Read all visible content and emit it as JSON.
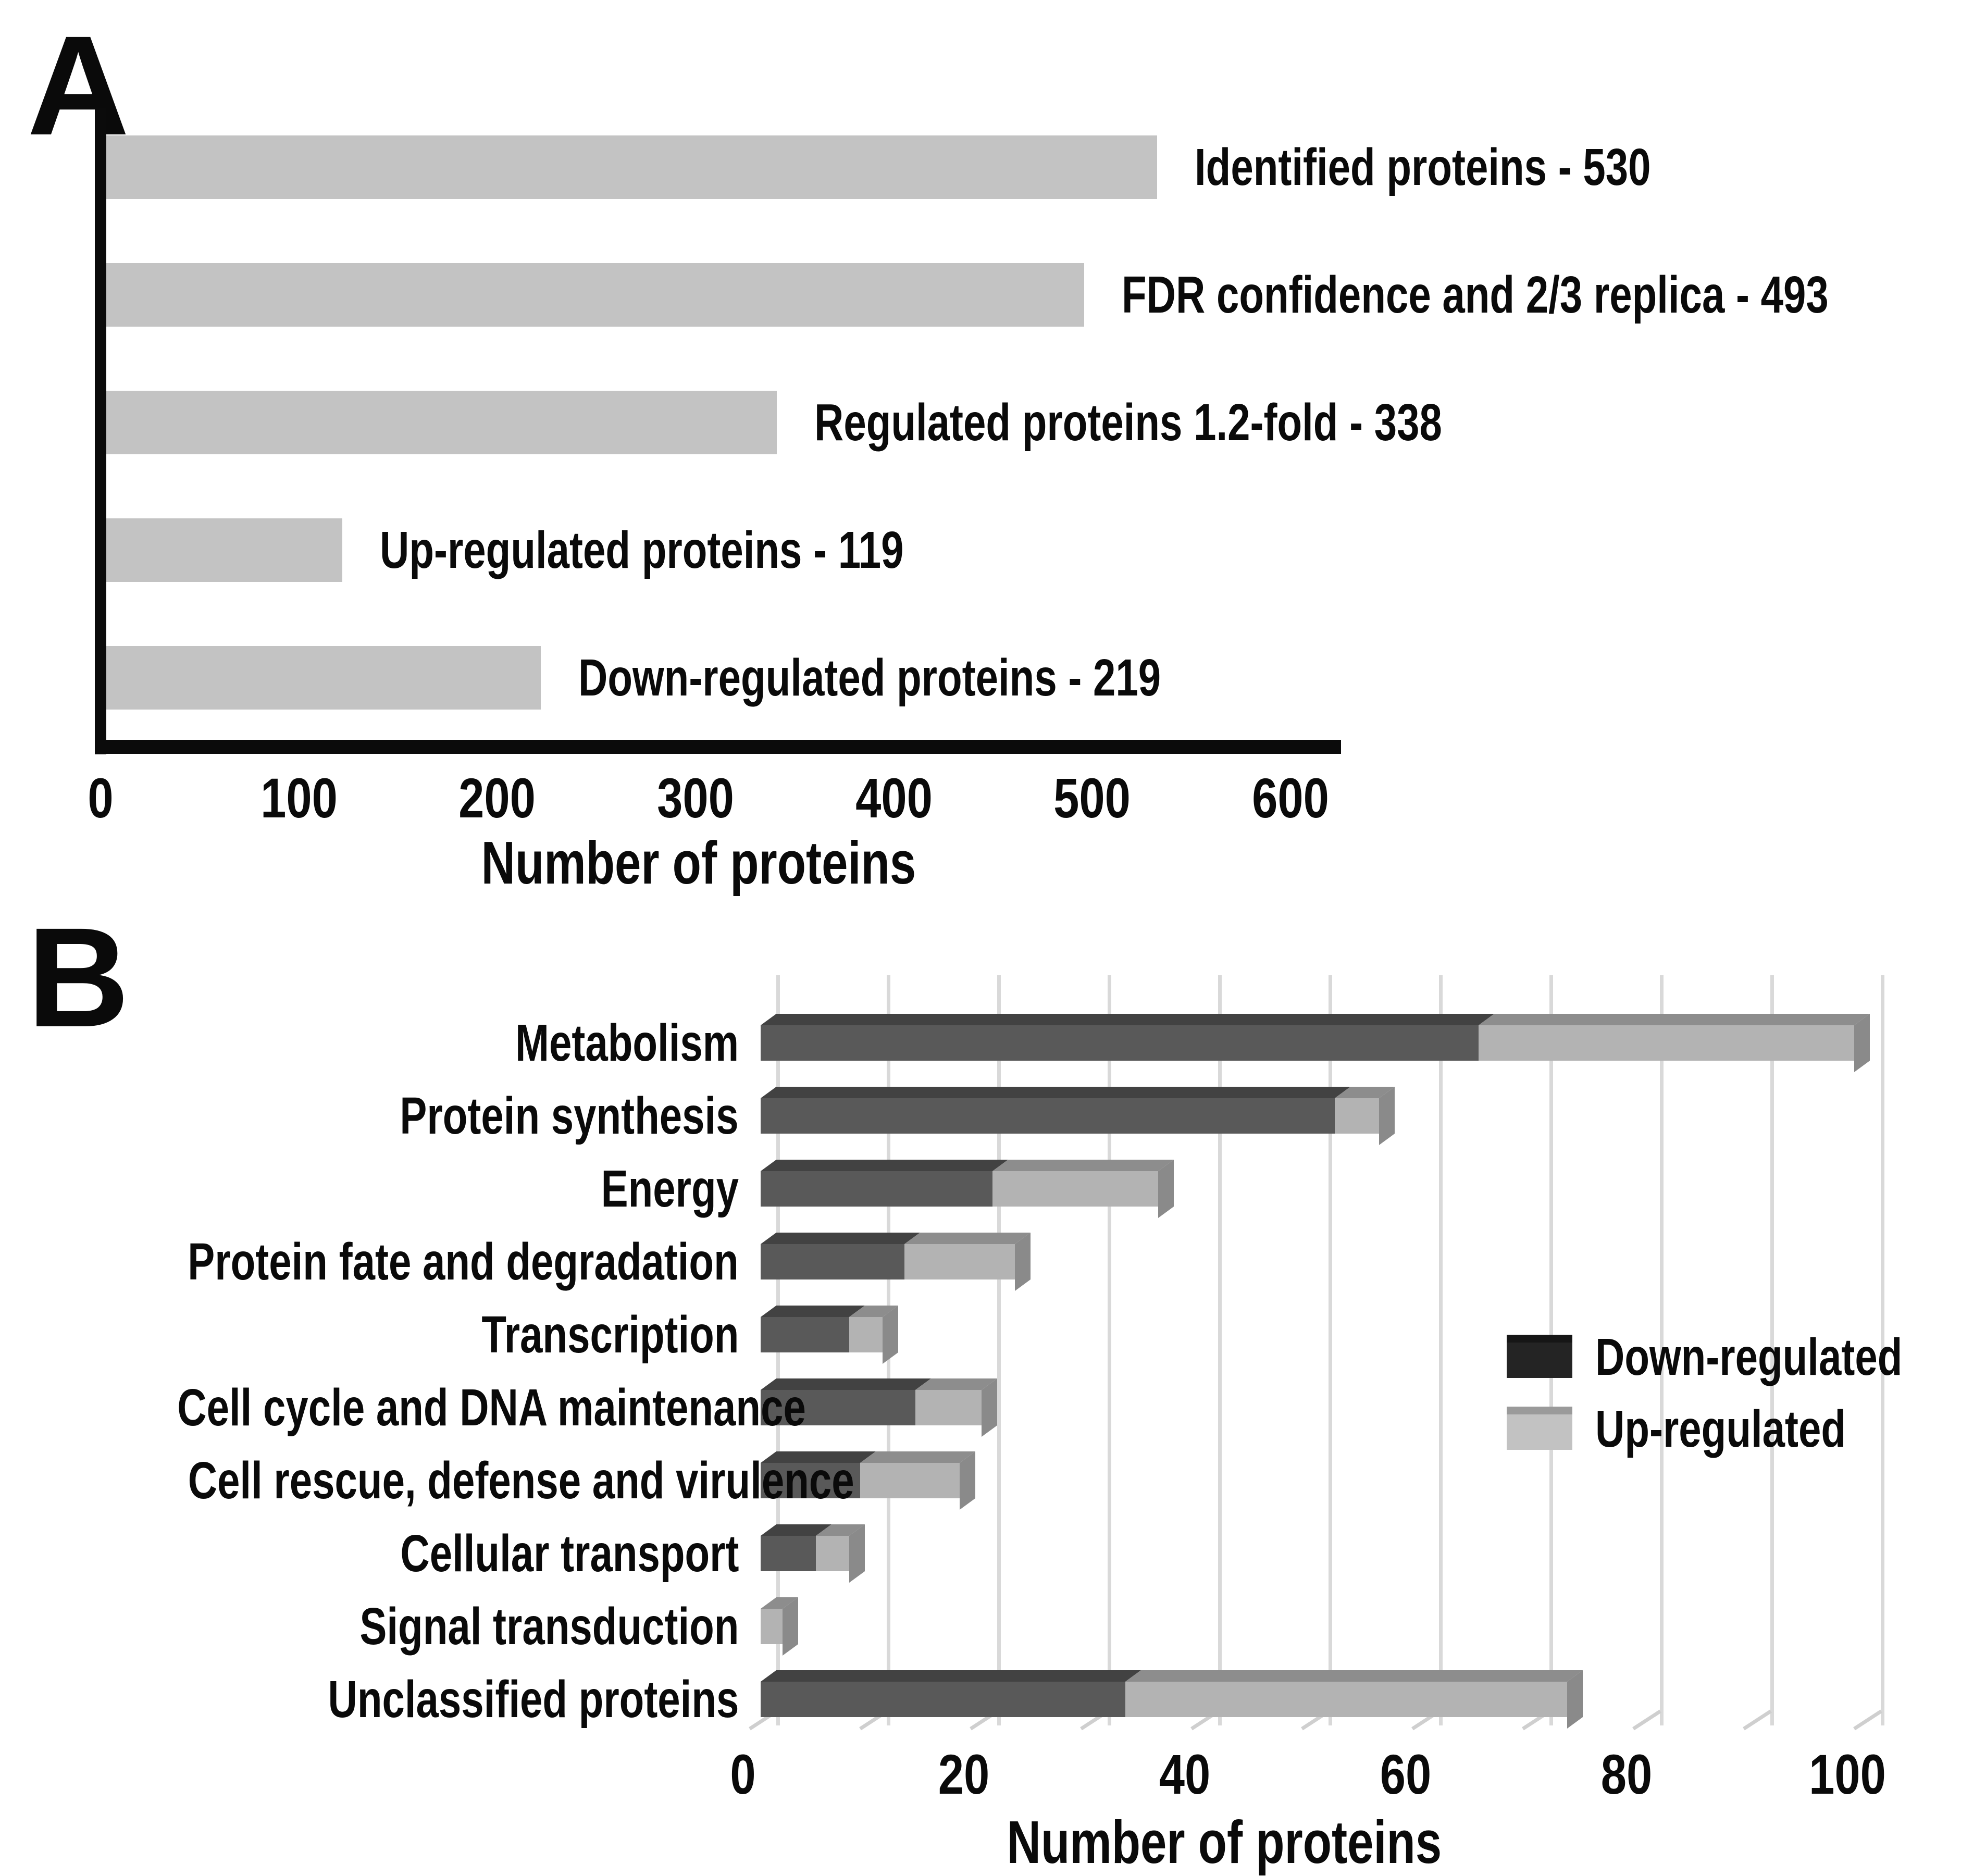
{
  "panels": {
    "a": "A",
    "b": "B"
  },
  "colors": {
    "background": "#ffffff",
    "axis": "#0b0b0b",
    "gridline": "#d9d9d9",
    "tick_diagonal": "#cfcfcf",
    "text": "#0a0a0a"
  },
  "chart_data": [
    {
      "type": "bar",
      "orientation": "horizontal",
      "panel": "A",
      "categories": [
        "Identified proteins",
        "FDR confidence and 2/3 replica",
        "Regulated proteins 1.2-fold",
        "Up-regulated proteins",
        "Down-regulated proteins"
      ],
      "values": [
        530,
        493,
        338,
        119,
        219
      ],
      "annotations": [
        "Identified proteins - 530",
        "FDR confidence and 2/3 replica - 493",
        "Regulated proteins 1.2-fold - 338",
        "Up-regulated proteins - 119",
        "Down-regulated proteins - 219"
      ],
      "bar_color": "#c3c3c3",
      "xlabel": "Number of proteins",
      "xticks": [
        0,
        100,
        200,
        300,
        400,
        500,
        600
      ],
      "xlim": [
        0,
        600
      ],
      "grid": false,
      "legend": "none"
    },
    {
      "type": "bar",
      "subtype": "stacked-3d",
      "orientation": "horizontal",
      "panel": "B",
      "categories": [
        "Metabolism",
        "Protein synthesis",
        "Energy",
        "Protein fate and degradation",
        "Transcription",
        "Cell cycle and DNA maintenance",
        "Cell rescue, defense and virulence",
        "Cellular transport",
        "Signal transduction",
        "Unclassified proteins"
      ],
      "series": [
        {
          "name": "Down-regulated",
          "values": [
            65,
            52,
            21,
            13,
            8,
            14,
            9,
            5,
            0,
            33
          ],
          "color": {
            "front": "#595959",
            "top": "#424242",
            "side": "#4a4a4a"
          },
          "legend": {
            "fill": "#242424",
            "top": "#161616"
          }
        },
        {
          "name": "Up-regulated",
          "values": [
            34,
            4,
            15,
            10,
            3,
            6,
            9,
            3,
            2,
            40
          ],
          "color": {
            "front": "#b3b3b3",
            "top": "#8d8d8d",
            "side": "#8a8a8a"
          },
          "legend": {
            "fill": "#c2c2c2",
            "top": "#9a9a9a"
          }
        }
      ],
      "xlabel": "Number of proteins",
      "xticks": [
        0,
        20,
        40,
        60,
        80,
        100
      ],
      "gridline_step": 10,
      "xlim": [
        0,
        100
      ],
      "grid": true,
      "legend_position": "right-middle"
    }
  ]
}
